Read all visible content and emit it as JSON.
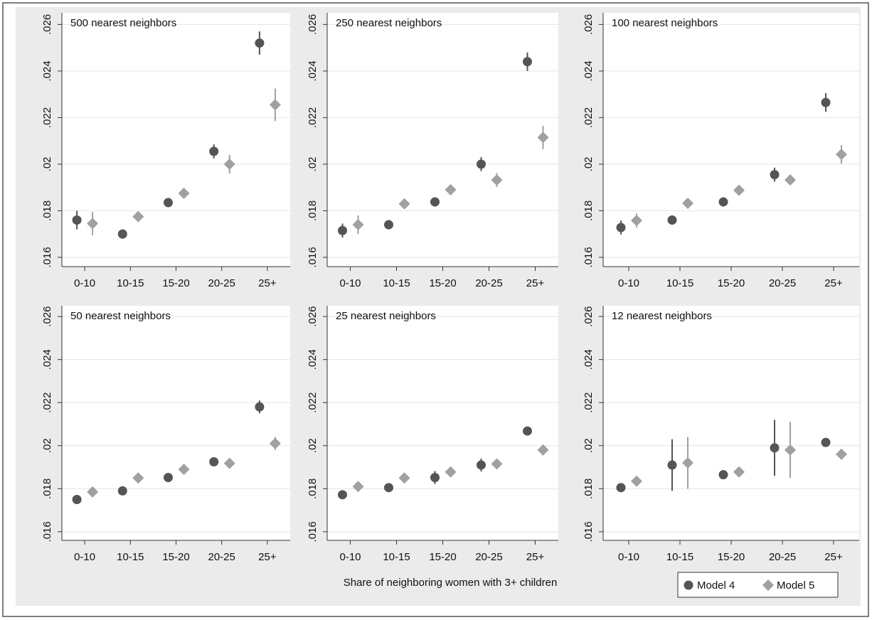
{
  "chart_data": {
    "type": "errorbar",
    "xlabel": "Share of neighboring women with 3+ children",
    "categories": [
      "0-10",
      "10-15",
      "15-20",
      "20-25",
      "25+"
    ],
    "ylim": [
      0.0156,
      0.0265
    ],
    "yticks": [
      {
        "value": 0.016,
        "label": ".016"
      },
      {
        "value": 0.018,
        "label": ".018"
      },
      {
        "value": 0.02,
        "label": ".02"
      },
      {
        "value": 0.022,
        "label": ".022"
      },
      {
        "value": 0.024,
        "label": ".024"
      },
      {
        "value": 0.026,
        "label": ".026"
      }
    ],
    "grid": true,
    "legend": "bottom-right",
    "series": [
      {
        "name": "Model 4",
        "color": "#555555",
        "marker": "circle"
      },
      {
        "name": "Model 5",
        "color": "#a0a0a0",
        "marker": "diamond"
      }
    ],
    "panels": [
      {
        "title": "500 nearest neighbors",
        "series": [
          {
            "values": [
              0.0176,
              0.017,
              0.01835,
              0.02055,
              0.0252
            ],
            "errors": [
              0.0004,
              0.0002,
              0.0002,
              0.0003,
              0.0005
            ]
          },
          {
            "values": [
              0.01745,
              0.01775,
              0.01875,
              0.02,
              0.02255
            ],
            "errors": [
              0.0005,
              0.0002,
              0.0002,
              0.0004,
              0.0007
            ]
          }
        ]
      },
      {
        "title": "250 nearest neighbors",
        "series": [
          {
            "values": [
              0.01715,
              0.0174,
              0.01838,
              0.02,
              0.0244
            ],
            "errors": [
              0.0003,
              0.0002,
              0.0002,
              0.0003,
              0.0004
            ]
          },
          {
            "values": [
              0.0174,
              0.0183,
              0.0189,
              0.01932,
              0.02115
            ],
            "errors": [
              0.0004,
              0.0002,
              0.0002,
              0.0003,
              0.0005
            ]
          }
        ]
      },
      {
        "title": "100 nearest neighbors",
        "series": [
          {
            "values": [
              0.01728,
              0.0176,
              0.01838,
              0.01955,
              0.02265
            ],
            "errors": [
              0.0003,
              0.0002,
              0.0002,
              0.0003,
              0.0004
            ]
          },
          {
            "values": [
              0.01758,
              0.01832,
              0.01888,
              0.01932,
              0.02042
            ],
            "errors": [
              0.0003,
              0.0002,
              0.0002,
              0.0002,
              0.0004
            ]
          }
        ]
      },
      {
        "title": "50 nearest neighbors",
        "series": [
          {
            "values": [
              0.0175,
              0.0179,
              0.01852,
              0.01925,
              0.0218
            ],
            "errors": [
              0.0002,
              0.0002,
              0.0002,
              0.0002,
              0.0003
            ]
          },
          {
            "values": [
              0.01785,
              0.0185,
              0.0189,
              0.01918,
              0.0201
            ],
            "errors": [
              0.0002,
              0.0002,
              0.0002,
              0.0002,
              0.0003
            ]
          }
        ]
      },
      {
        "title": "25 nearest neighbors",
        "series": [
          {
            "values": [
              0.01772,
              0.01805,
              0.01852,
              0.0191,
              0.02068
            ],
            "errors": [
              0.0002,
              0.0002,
              0.0003,
              0.0003,
              0.0002
            ]
          },
          {
            "values": [
              0.0181,
              0.0185,
              0.01878,
              0.01915,
              0.0198
            ],
            "errors": [
              0.0002,
              0.0002,
              0.0002,
              0.0002,
              0.0002
            ]
          }
        ]
      },
      {
        "title": "12 nearest neighbors",
        "series": [
          {
            "values": [
              0.01805,
              0.0191,
              0.01865,
              0.0199,
              0.02015
            ],
            "errors": [
              0.0002,
              0.0012,
              0.0002,
              0.0013,
              0.0002
            ]
          },
          {
            "values": [
              0.01835,
              0.0192,
              0.01878,
              0.0198,
              0.0196
            ],
            "errors": [
              0.0002,
              0.0012,
              0.0002,
              0.0013,
              0.0002
            ]
          }
        ]
      }
    ]
  }
}
